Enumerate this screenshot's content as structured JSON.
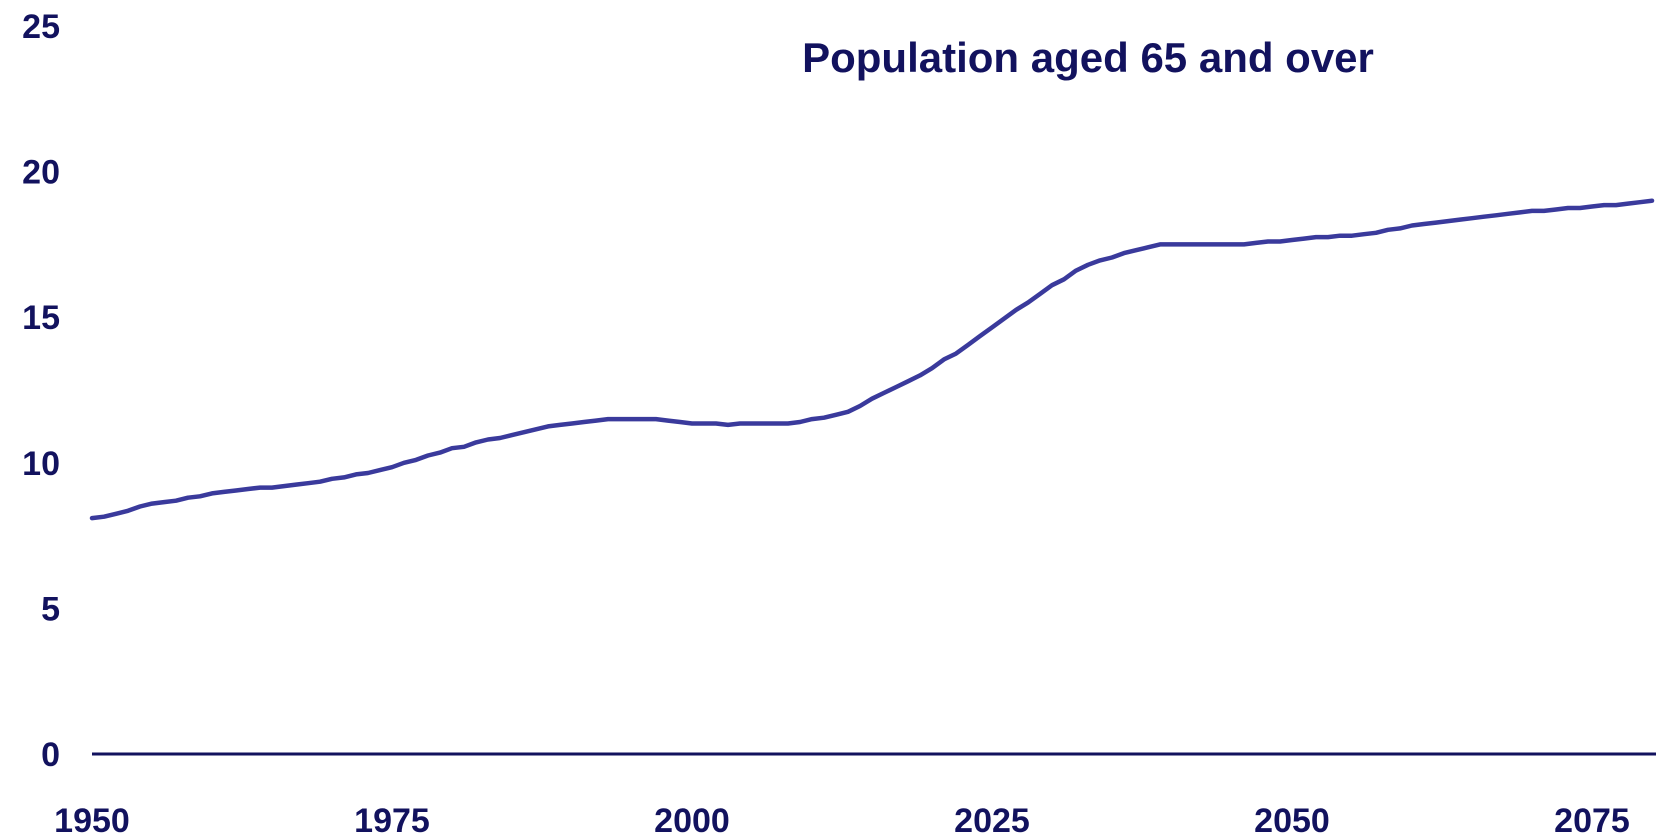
{
  "chart_data": {
    "type": "line",
    "title": "Population aged 65 and over",
    "xlabel": "",
    "ylabel": "",
    "xlim": [
      1950,
      2080
    ],
    "ylim": [
      0,
      25
    ],
    "x_ticks": [
      "1950",
      "1975",
      "2000",
      "2025",
      "2050",
      "2075"
    ],
    "y_ticks": [
      "0",
      "5",
      "10",
      "15",
      "20",
      "25"
    ],
    "grid": false,
    "legend": "none",
    "colors": {
      "line": "#3a3a9c",
      "axis": "#12125e",
      "text": "#12125e"
    },
    "series": [
      {
        "x": [
          1950,
          1951,
          1952,
          1953,
          1954,
          1955,
          1956,
          1957,
          1958,
          1959,
          1960,
          1961,
          1962,
          1963,
          1964,
          1965,
          1966,
          1967,
          1968,
          1969,
          1970,
          1971,
          1972,
          1973,
          1974,
          1975,
          1976,
          1977,
          1978,
          1979,
          1980,
          1981,
          1982,
          1983,
          1984,
          1985,
          1986,
          1987,
          1988,
          1989,
          1990,
          1991,
          1992,
          1993,
          1994,
          1995,
          1996,
          1997,
          1998,
          1999,
          2000,
          2001,
          2002,
          2003,
          2004,
          2005,
          2006,
          2007,
          2008,
          2009,
          2010,
          2011,
          2012,
          2013,
          2014,
          2015,
          2016,
          2017,
          2018,
          2019,
          2020,
          2021,
          2022,
          2023,
          2024,
          2025,
          2026,
          2027,
          2028,
          2029,
          2030,
          2031,
          2032,
          2033,
          2034,
          2035,
          2036,
          2037,
          2038,
          2039,
          2040,
          2041,
          2042,
          2043,
          2044,
          2045,
          2046,
          2047,
          2048,
          2049,
          2050,
          2051,
          2052,
          2053,
          2054,
          2055,
          2056,
          2057,
          2058,
          2059,
          2060,
          2061,
          2062,
          2063,
          2064,
          2065,
          2066,
          2067,
          2068,
          2069,
          2070,
          2071,
          2072,
          2073,
          2074,
          2075,
          2076,
          2077,
          2078,
          2079,
          2080
        ],
        "values": [
          8.1,
          8.15,
          8.25,
          8.35,
          8.5,
          8.6,
          8.65,
          8.7,
          8.8,
          8.85,
          8.95,
          9.0,
          9.05,
          9.1,
          9.15,
          9.15,
          9.2,
          9.25,
          9.3,
          9.35,
          9.45,
          9.5,
          9.6,
          9.65,
          9.75,
          9.85,
          10.0,
          10.1,
          10.25,
          10.35,
          10.5,
          10.55,
          10.7,
          10.8,
          10.85,
          10.95,
          11.05,
          11.15,
          11.25,
          11.3,
          11.35,
          11.4,
          11.45,
          11.5,
          11.5,
          11.5,
          11.5,
          11.5,
          11.45,
          11.4,
          11.35,
          11.35,
          11.35,
          11.3,
          11.35,
          11.35,
          11.35,
          11.35,
          11.35,
          11.4,
          11.5,
          11.55,
          11.65,
          11.75,
          11.95,
          12.2,
          12.4,
          12.6,
          12.8,
          13.0,
          13.25,
          13.55,
          13.75,
          14.05,
          14.35,
          14.65,
          14.95,
          15.25,
          15.5,
          15.8,
          16.1,
          16.3,
          16.6,
          16.8,
          16.95,
          17.05,
          17.2,
          17.3,
          17.4,
          17.5,
          17.5,
          17.5,
          17.5,
          17.5,
          17.5,
          17.5,
          17.5,
          17.55,
          17.6,
          17.6,
          17.65,
          17.7,
          17.75,
          17.75,
          17.8,
          17.8,
          17.85,
          17.9,
          18.0,
          18.05,
          18.15,
          18.2,
          18.25,
          18.3,
          18.35,
          18.4,
          18.45,
          18.5,
          18.55,
          18.6,
          18.65,
          18.65,
          18.7,
          18.75,
          18.75,
          18.8,
          18.85,
          18.85,
          18.9,
          18.95,
          19.0
        ]
      }
    ]
  }
}
